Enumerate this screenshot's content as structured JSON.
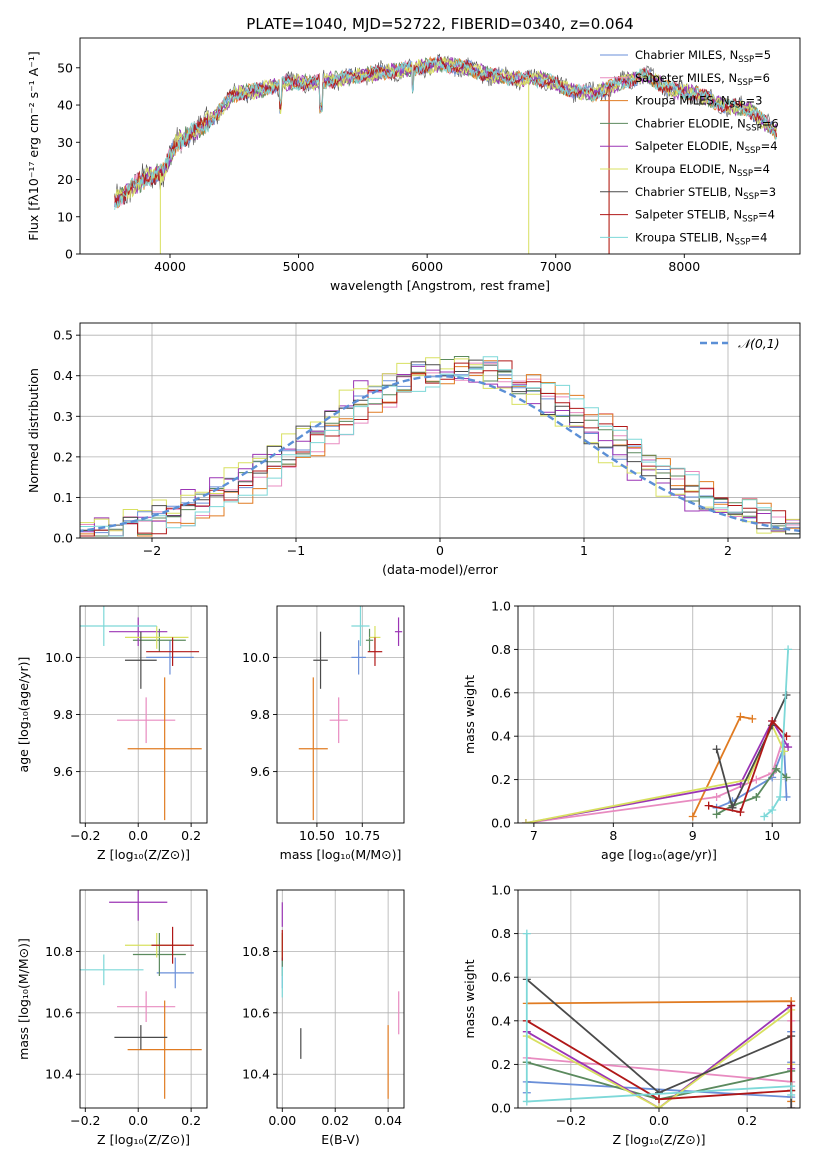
{
  "series_colors": [
    "#6a8fd8",
    "#e88bc0",
    "#e07b22",
    "#5b8a5e",
    "#9b35b5",
    "#d8e060",
    "#4a4a4a",
    "#b01818",
    "#7dd8d8"
  ],
  "chart_data": [
    {
      "id": "spectrum",
      "type": "line",
      "title": "PLATE=1040, MJD=52722, FIBERID=0340, z=0.064",
      "xlabel": "wavelength [Angstrom, rest frame]",
      "ylabel": "Flux [fλ10⁻¹⁷ erg cm⁻² s⁻¹ A⁻¹]",
      "xlim": [
        3300,
        8900
      ],
      "ylim": [
        0,
        58
      ],
      "xticks": [
        4000,
        5000,
        6000,
        7000,
        8000
      ],
      "yticks": [
        0,
        10,
        20,
        30,
        40,
        50
      ],
      "grid": false,
      "legend_position": "top-right",
      "legend": [
        "Chabrier MILES, N_SSP=5",
        "Salpeter MILES, N_SSP=6",
        "Kroupa MILES, N_SSP=3",
        "Chabrier ELODIE, N_SSP=6",
        "Salpeter ELODIE, N_SSP=4",
        "Kroupa ELODIE, N_SSP=4",
        "Chabrier STELIB, N_SSP=3",
        "Salpeter STELIB, N_SSP=4",
        "Kroupa STELIB, N_SSP=4"
      ],
      "continuum": {
        "x": [
          3570,
          3700,
          3850,
          3950,
          4050,
          4200,
          4350,
          4500,
          4700,
          4900,
          5100,
          5300,
          5500,
          5700,
          5900,
          6100,
          6300,
          6500,
          6700,
          6900,
          7100,
          7300,
          7500,
          7700,
          7900,
          8100,
          8300,
          8500,
          8700
        ],
        "y": [
          14,
          18,
          21,
          22,
          30,
          33,
          37,
          43,
          44,
          46,
          46,
          47,
          48,
          49,
          50,
          51,
          50,
          48,
          47,
          47,
          44,
          43,
          46,
          48,
          44,
          43,
          40,
          39,
          33
        ]
      }
    },
    {
      "id": "residuals",
      "type": "histogram",
      "xlabel": "(data-model)/error",
      "ylabel": "Normed distribution",
      "xlim": [
        -2.5,
        2.5
      ],
      "ylim": [
        0,
        0.53
      ],
      "xticks": [
        -2,
        -1,
        0,
        1,
        2
      ],
      "yticks": [
        0.0,
        0.1,
        0.2,
        0.3,
        0.4,
        0.5
      ],
      "grid": true,
      "legend_position": "top-right",
      "legend": [
        "𝒩(0,1)"
      ],
      "reference_curve": "normal(0,1)"
    },
    {
      "id": "age-vs-Z",
      "type": "errorbar",
      "xlabel": "Z [log₁₀(Z/Z⊙)]",
      "ylabel": "age  [log₁₀(age/yr)]",
      "xlim": [
        -0.22,
        0.26
      ],
      "ylim": [
        9.42,
        10.18
      ],
      "xticks": [
        -0.2,
        0.0,
        0.2
      ],
      "yticks": [
        9.6,
        9.8,
        10.0
      ],
      "grid": true,
      "points": [
        {
          "x": 0.12,
          "y": 10.0,
          "xerr": 0.09,
          "yerr": 0.06
        },
        {
          "x": 0.03,
          "y": 9.78,
          "xerr": 0.11,
          "yerr": 0.08
        },
        {
          "x": 0.1,
          "y": 9.68,
          "xerr": 0.14,
          "yerr": 0.25
        },
        {
          "x": 0.08,
          "y": 10.06,
          "xerr": 0.1,
          "yerr": 0.04
        },
        {
          "x": 0.0,
          "y": 10.09,
          "xerr": 0.11,
          "yerr": 0.05
        },
        {
          "x": 0.07,
          "y": 10.07,
          "xerr": 0.12,
          "yerr": 0.04
        },
        {
          "x": 0.01,
          "y": 9.99,
          "xerr": 0.06,
          "yerr": 0.1
        },
        {
          "x": 0.13,
          "y": 10.02,
          "xerr": 0.1,
          "yerr": 0.05
        },
        {
          "x": -0.13,
          "y": 10.11,
          "xerr": 0.2,
          "yerr": 0.07
        }
      ]
    },
    {
      "id": "age-vs-mass",
      "type": "errorbar",
      "xlabel": "mass [log₁₀(M/M⊙)]",
      "ylabel": "",
      "xlim": [
        10.28,
        10.98
      ],
      "ylim": [
        9.42,
        10.18
      ],
      "xticks": [
        10.5,
        10.75
      ],
      "yticks": [
        9.6,
        9.8,
        10.0
      ],
      "grid": true,
      "points": [
        {
          "x": 10.73,
          "y": 10.0,
          "xerr": 0.04,
          "yerr": 0.06
        },
        {
          "x": 10.62,
          "y": 9.78,
          "xerr": 0.05,
          "yerr": 0.08
        },
        {
          "x": 10.48,
          "y": 9.68,
          "xerr": 0.08,
          "yerr": 0.25
        },
        {
          "x": 10.79,
          "y": 10.06,
          "xerr": 0.02,
          "yerr": 0.04
        },
        {
          "x": 10.95,
          "y": 10.09,
          "xerr": 0.02,
          "yerr": 0.05
        },
        {
          "x": 10.82,
          "y": 10.07,
          "xerr": 0.03,
          "yerr": 0.04
        },
        {
          "x": 10.52,
          "y": 9.99,
          "xerr": 0.04,
          "yerr": 0.1
        },
        {
          "x": 10.82,
          "y": 10.02,
          "xerr": 0.04,
          "yerr": 0.05
        },
        {
          "x": 10.74,
          "y": 10.11,
          "xerr": 0.05,
          "yerr": 0.07
        }
      ]
    },
    {
      "id": "weight-vs-age",
      "type": "line",
      "xlabel": "age  [log₁₀(age/yr)]",
      "ylabel": "mass weight",
      "xlim": [
        6.8,
        10.35
      ],
      "ylim": [
        0,
        1.0
      ],
      "xticks": [
        7,
        8,
        9,
        10
      ],
      "yticks": [
        0.0,
        0.2,
        0.4,
        0.6,
        0.8,
        1.0
      ],
      "grid": true,
      "series": [
        {
          "x": [
            9.3,
            9.5,
            10.0,
            10.15,
            10.18
          ],
          "y": [
            0.07,
            0.1,
            0.21,
            0.35,
            0.12
          ]
        },
        {
          "x": [
            6.9,
            9.3,
            9.8,
            10.0,
            10.15
          ],
          "y": [
            0.0,
            0.12,
            0.2,
            0.23,
            0.4
          ]
        },
        {
          "x": [
            9.0,
            9.6,
            9.75
          ],
          "y": [
            0.03,
            0.49,
            0.48
          ]
        },
        {
          "x": [
            9.3,
            9.5,
            9.8,
            10.05,
            10.18
          ],
          "y": [
            0.04,
            0.08,
            0.12,
            0.25,
            0.21
          ]
        },
        {
          "x": [
            6.9,
            9.6,
            10.0,
            10.2
          ],
          "y": [
            0.0,
            0.18,
            0.47,
            0.35
          ]
        },
        {
          "x": [
            6.9,
            9.7,
            10.0,
            10.15
          ],
          "y": [
            0.0,
            0.2,
            0.45,
            0.33
          ]
        },
        {
          "x": [
            9.3,
            9.5,
            10.0,
            10.18
          ],
          "y": [
            0.34,
            0.07,
            0.45,
            0.59
          ]
        },
        {
          "x": [
            9.2,
            9.6,
            10.0,
            10.18
          ],
          "y": [
            0.08,
            0.05,
            0.47,
            0.4
          ]
        },
        {
          "x": [
            9.9,
            10.0,
            10.1,
            10.2
          ],
          "y": [
            0.03,
            0.06,
            0.12,
            0.8
          ]
        }
      ]
    },
    {
      "id": "mass-vs-Z",
      "type": "errorbar",
      "xlabel": "Z [log₁₀(Z/Z⊙)]",
      "ylabel": "mass [log₁₀(M/M⊙)]",
      "xlim": [
        -0.22,
        0.26
      ],
      "ylim": [
        10.29,
        11.0
      ],
      "xticks": [
        -0.2,
        0.0,
        0.2
      ],
      "yticks": [
        10.4,
        10.6,
        10.8
      ],
      "grid": true,
      "points": [
        {
          "x": 0.14,
          "y": 10.73,
          "xerr": 0.07,
          "yerr": 0.05
        },
        {
          "x": 0.03,
          "y": 10.62,
          "xerr": 0.11,
          "yerr": 0.05
        },
        {
          "x": 0.1,
          "y": 10.48,
          "xerr": 0.14,
          "yerr": 0.16
        },
        {
          "x": 0.08,
          "y": 10.79,
          "xerr": 0.1,
          "yerr": 0.07
        },
        {
          "x": 0.0,
          "y": 10.96,
          "xerr": 0.11,
          "yerr": 0.06
        },
        {
          "x": 0.07,
          "y": 10.82,
          "xerr": 0.12,
          "yerr": 0.04
        },
        {
          "x": 0.01,
          "y": 10.52,
          "xerr": 0.1,
          "yerr": 0.04
        },
        {
          "x": 0.13,
          "y": 10.82,
          "xerr": 0.08,
          "yerr": 0.06
        },
        {
          "x": -0.13,
          "y": 10.74,
          "xerr": 0.15,
          "yerr": 0.05
        }
      ]
    },
    {
      "id": "mass-vs-EBV",
      "type": "errorbar",
      "xlabel": "E(B-V)",
      "ylabel": "",
      "xlim": [
        -0.002,
        0.046
      ],
      "ylim": [
        10.29,
        11.0
      ],
      "xticks": [
        0.0,
        0.02,
        0.04
      ],
      "yticks": [
        10.4,
        10.6,
        10.8
      ],
      "grid": true,
      "points": [
        {
          "x": 0.0,
          "y": 10.73,
          "xerr": 0.0,
          "yerr": 0.05
        },
        {
          "x": 0.044,
          "y": 10.6,
          "xerr": 0.0,
          "yerr": 0.07
        },
        {
          "x": 0.04,
          "y": 10.44,
          "xerr": 0.0,
          "yerr": 0.12
        },
        {
          "x": 0.0,
          "y": 10.79,
          "xerr": 0.0,
          "yerr": 0.07
        },
        {
          "x": 0.0,
          "y": 10.92,
          "xerr": 0.0,
          "yerr": 0.04
        },
        {
          "x": 0.0,
          "y": 10.82,
          "xerr": 0.0,
          "yerr": 0.04
        },
        {
          "x": 0.007,
          "y": 10.5,
          "xerr": 0.0,
          "yerr": 0.05
        },
        {
          "x": 0.0,
          "y": 10.82,
          "xerr": 0.0,
          "yerr": 0.05
        },
        {
          "x": 0.0,
          "y": 10.7,
          "xerr": 0.0,
          "yerr": 0.05
        }
      ]
    },
    {
      "id": "weight-vs-Z",
      "type": "line",
      "xlabel": "Z [log₁₀(Z/Z⊙)]",
      "ylabel": "mass weight",
      "xlim": [
        -0.32,
        0.32
      ],
      "ylim": [
        0,
        1.0
      ],
      "xticks": [
        -0.2,
        0.0,
        0.2
      ],
      "yticks": [
        0.0,
        0.2,
        0.4,
        0.6,
        0.8,
        1.0
      ],
      "grid": true,
      "series": [
        {
          "x": [
            -0.3,
            -0.3,
            0.3,
            0.3,
            0.3
          ],
          "y": [
            0.07,
            0.12,
            0.05,
            0.21,
            0.35
          ]
        },
        {
          "x": [
            -0.3,
            0.3,
            0.3,
            0.3,
            0.3
          ],
          "y": [
            0.23,
            0.12,
            0.2,
            0.4,
            0.0
          ]
        },
        {
          "x": [
            -0.3,
            0.3,
            0.3
          ],
          "y": [
            0.48,
            0.49,
            0.03
          ]
        },
        {
          "x": [
            -0.3,
            -0.3,
            0.0,
            0.3,
            0.3
          ],
          "y": [
            0.21,
            0.21,
            0.04,
            0.17,
            0.08
          ]
        },
        {
          "x": [
            -0.3,
            0.0,
            0.3,
            0.3
          ],
          "y": [
            0.35,
            0.0,
            0.47,
            0.18
          ]
        },
        {
          "x": [
            -0.3,
            0.0,
            0.3,
            0.3
          ],
          "y": [
            0.33,
            0.0,
            0.45,
            0.2
          ]
        },
        {
          "x": [
            -0.3,
            0.0,
            0.3,
            0.3
          ],
          "y": [
            0.59,
            0.07,
            0.33,
            0.0
          ]
        },
        {
          "x": [
            -0.3,
            0.0,
            0.3,
            0.3
          ],
          "y": [
            0.4,
            0.04,
            0.08,
            0.47
          ]
        },
        {
          "x": [
            -0.3,
            -0.3,
            0.3,
            0.3
          ],
          "y": [
            0.8,
            0.03,
            0.1,
            0.06
          ]
        }
      ]
    }
  ]
}
